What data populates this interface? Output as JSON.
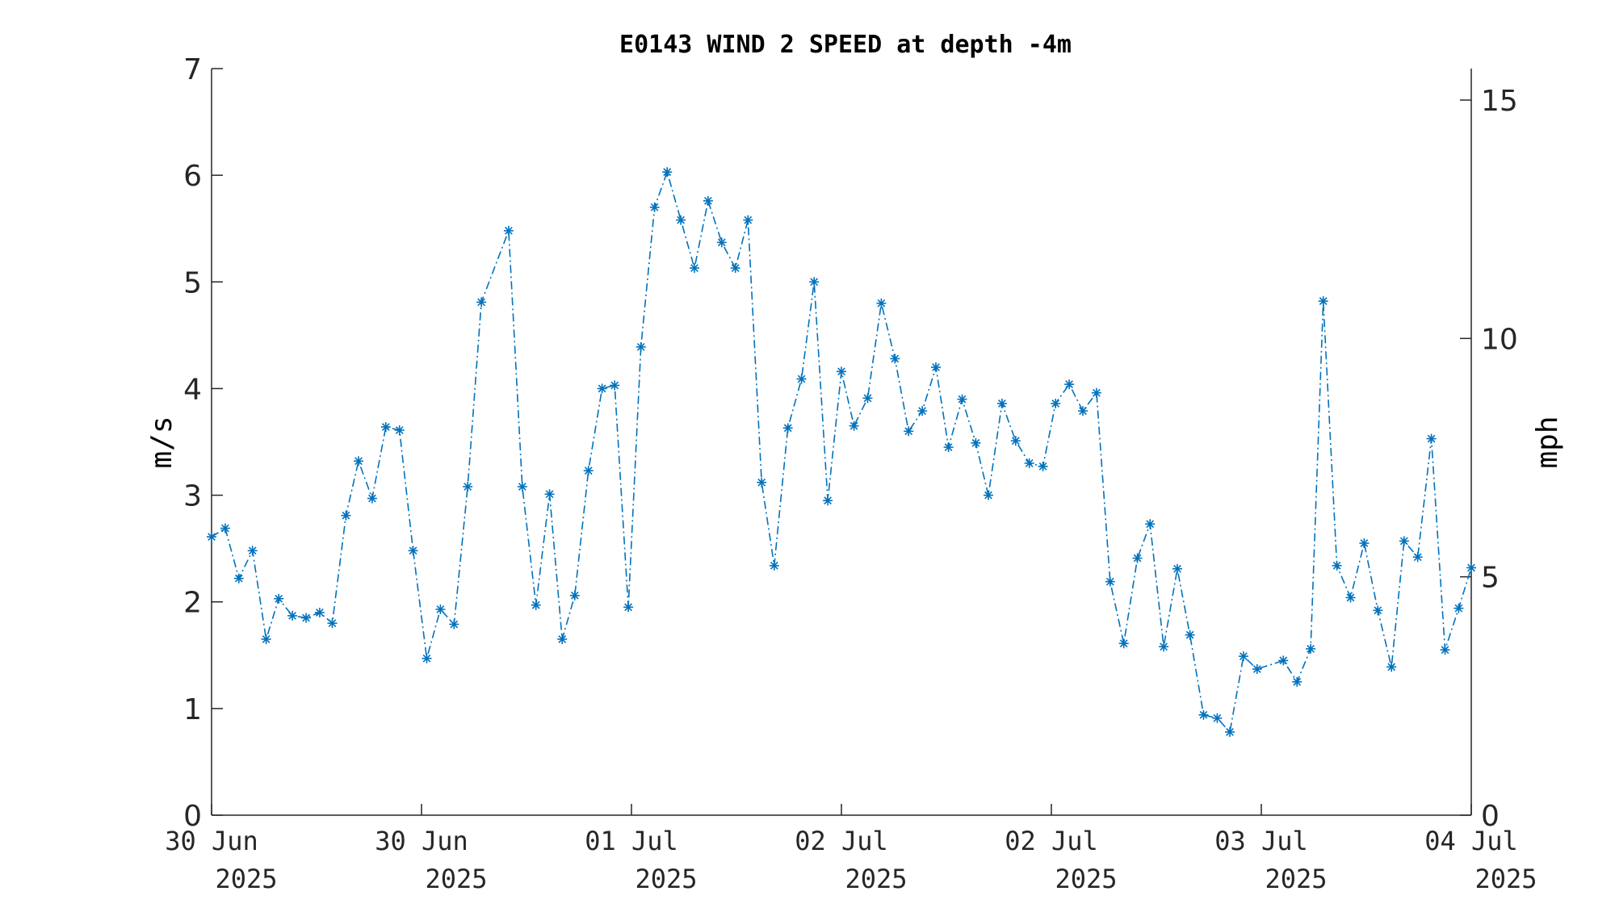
{
  "chart_data": {
    "type": "line",
    "title": "E0143 WIND 2 SPEED at depth -4m",
    "ylabel": "m/s",
    "ylabel_right": "mph",
    "ylim": [
      0,
      7
    ],
    "yticks": [
      0,
      1,
      2,
      3,
      4,
      5,
      6,
      7
    ],
    "ylim_right": [
      0,
      15.66
    ],
    "yticks_right": [
      0,
      5,
      10,
      15
    ],
    "xlim": [
      0,
      6
    ],
    "xticks": [
      {
        "value": 0,
        "line1": "30 Jun",
        "line2": "2025"
      },
      {
        "value": 1,
        "line1": "30 Jun",
        "line2": "2025"
      },
      {
        "value": 2,
        "line1": "01 Jul",
        "line2": "2025"
      },
      {
        "value": 3,
        "line1": "02 Jul",
        "line2": "2025"
      },
      {
        "value": 4,
        "line1": "02 Jul",
        "line2": "2025"
      },
      {
        "value": 5,
        "line1": "03 Jul",
        "line2": "2025"
      },
      {
        "value": 6,
        "line1": "04 Jul",
        "line2": "2025"
      }
    ],
    "grid": false,
    "marker": "asterisk",
    "line_style": "dash-dot",
    "color": "#0072BD",
    "series": [
      {
        "x": [
          0.0,
          0.065,
          0.13,
          0.195,
          0.26,
          0.32,
          0.385,
          0.45,
          0.515,
          0.575,
          0.64,
          0.7,
          0.765,
          0.83,
          0.895,
          0.96,
          1.025,
          1.09,
          1.155,
          1.22,
          1.285,
          1.415,
          1.48,
          1.545,
          1.61,
          1.67,
          1.73,
          1.795,
          1.86,
          1.92,
          1.985,
          2.045,
          2.11,
          2.17,
          2.235,
          2.3,
          2.365,
          2.43,
          2.495,
          2.555,
          2.62,
          2.68,
          2.745,
          2.81,
          2.87,
          2.935,
          3.0,
          3.06,
          3.125,
          3.19,
          3.255,
          3.32,
          3.385,
          3.45,
          3.51,
          3.575,
          3.64,
          3.7,
          3.765,
          3.83,
          3.895,
          3.96,
          4.02,
          4.085,
          4.15,
          4.215,
          4.28,
          4.345,
          4.41,
          4.47,
          4.535,
          4.6,
          4.66,
          4.725,
          4.79,
          4.85,
          4.915,
          4.98,
          5.105,
          5.17,
          5.235,
          5.295,
          5.36,
          5.425,
          5.49,
          5.555,
          5.62,
          5.68,
          5.745,
          5.81,
          5.875,
          5.94,
          6.0
        ],
        "values": [
          2.61,
          2.69,
          2.22,
          2.48,
          1.65,
          2.03,
          1.87,
          1.85,
          1.9,
          1.8,
          2.81,
          3.32,
          2.97,
          3.64,
          3.61,
          2.48,
          1.47,
          1.93,
          1.79,
          3.08,
          4.81,
          5.48,
          3.08,
          1.97,
          3.01,
          1.65,
          2.06,
          3.23,
          4.0,
          4.03,
          1.95,
          4.39,
          5.7,
          6.03,
          5.58,
          5.13,
          5.76,
          5.37,
          5.13,
          5.58,
          3.12,
          2.34,
          3.63,
          4.09,
          5.0,
          2.95,
          4.16,
          3.65,
          3.91,
          4.8,
          4.28,
          3.6,
          3.79,
          4.2,
          3.45,
          3.9,
          3.49,
          3.0,
          3.86,
          3.51,
          3.3,
          3.27,
          3.86,
          4.04,
          3.79,
          3.96,
          2.19,
          1.61,
          2.41,
          2.73,
          1.58,
          2.31,
          1.69,
          0.94,
          0.91,
          0.78,
          1.49,
          1.37,
          1.45,
          1.25,
          1.56,
          4.82,
          2.34,
          2.04,
          2.55,
          1.92,
          1.39,
          2.57,
          2.42,
          3.53,
          1.55,
          1.94,
          2.32
        ]
      }
    ]
  }
}
